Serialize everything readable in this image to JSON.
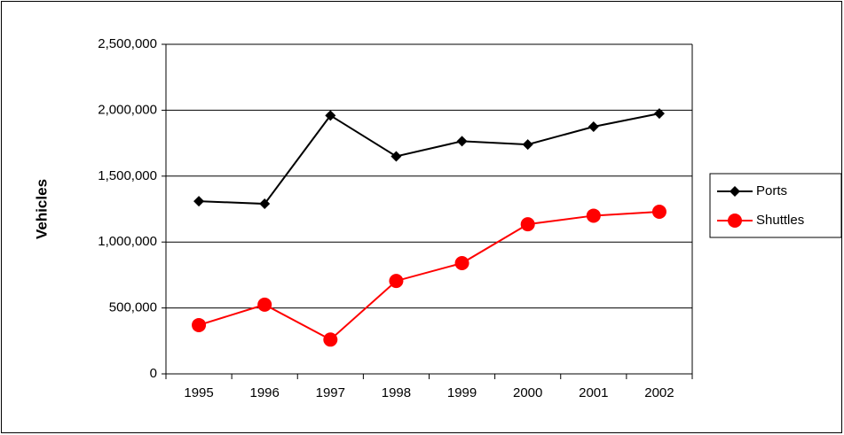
{
  "chart_data": {
    "type": "line",
    "y_label": "Vehicles",
    "categories": [
      "1995",
      "1996",
      "1997",
      "1998",
      "1999",
      "2000",
      "2001",
      "2002"
    ],
    "series": [
      {
        "name": "Ports",
        "color": "#000000",
        "marker": "diamond",
        "values": [
          1310000,
          1290000,
          1960000,
          1650000,
          1765000,
          1740000,
          1875000,
          1975000
        ]
      },
      {
        "name": "Shuttles",
        "color": "#ff0000",
        "marker": "circle",
        "values": [
          370000,
          525000,
          260000,
          705000,
          840000,
          1135000,
          1200000,
          1230000
        ]
      }
    ],
    "ylim": [
      0,
      2500000
    ],
    "yticks": [
      0,
      {
        "value": 500000,
        "label": "500,000"
      },
      {
        "value": 1000000,
        "label": "1,000,000"
      },
      {
        "value": 1500000,
        "label": "1,500,000"
      },
      {
        "value": 2000000,
        "label": "2,000,000"
      },
      {
        "value": 2500000,
        "label": "2,500,000"
      }
    ],
    "grid": true,
    "legend": "right"
  }
}
